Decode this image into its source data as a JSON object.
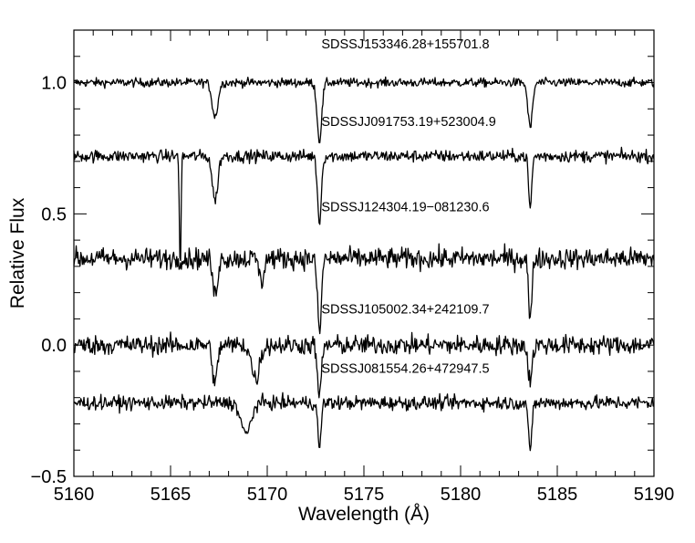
{
  "chart_data": {
    "type": "line",
    "title": "",
    "xlabel": "Wavelength (Å)",
    "ylabel": "Relative Flux",
    "xlim": [
      5160,
      5190
    ],
    "ylim": [
      -0.5,
      1.2
    ],
    "xticks": [
      5160,
      5165,
      5170,
      5175,
      5180,
      5185,
      5190
    ],
    "xtick_labels": [
      "5160",
      "5165",
      "5170",
      "5175",
      "5180",
      "5185",
      "5190"
    ],
    "yticks": [
      -0.5,
      0.0,
      0.5,
      1.0
    ],
    "ytick_labels": [
      "−0.5",
      "0.0",
      "0.5",
      "1.0"
    ],
    "grid": false,
    "line_color": "#000000",
    "series": [
      {
        "name": "SDSSJ153346.28+155701.8",
        "offset": 1.0,
        "noise": 0.016,
        "label_at": [
          5172.8,
          1.13
        ],
        "features": [
          {
            "center": 5167.3,
            "depth": 0.13,
            "width": 0.15
          },
          {
            "center": 5172.7,
            "depth": 0.22,
            "width": 0.12
          },
          {
            "center": 5183.6,
            "depth": 0.17,
            "width": 0.12
          }
        ]
      },
      {
        "name": "SDSSJJ091753.19+523004.9",
        "offset": 0.72,
        "noise": 0.022,
        "label_at": [
          5172.8,
          0.835
        ],
        "features": [
          {
            "center": 5165.5,
            "depth": 0.45,
            "width": 0.04
          },
          {
            "center": 5167.3,
            "depth": 0.17,
            "width": 0.14
          },
          {
            "center": 5172.7,
            "depth": 0.25,
            "width": 0.1
          },
          {
            "center": 5183.6,
            "depth": 0.2,
            "width": 0.08
          }
        ]
      },
      {
        "name": "SDSSJ124304.19−081230.6",
        "offset": 0.33,
        "noise": 0.038,
        "label_at": [
          5172.8,
          0.51
        ],
        "features": [
          {
            "center": 5167.3,
            "depth": 0.14,
            "width": 0.12
          },
          {
            "center": 5169.7,
            "depth": 0.1,
            "width": 0.1
          },
          {
            "center": 5172.7,
            "depth": 0.28,
            "width": 0.1
          },
          {
            "center": 5183.6,
            "depth": 0.25,
            "width": 0.08
          }
        ]
      },
      {
        "name": "SDSSJ105002.34+242109.7",
        "offset": 0.0,
        "noise": 0.035,
        "label_at": [
          5172.8,
          0.12
        ],
        "features": [
          {
            "center": 5167.3,
            "depth": 0.15,
            "width": 0.12
          },
          {
            "center": 5169.4,
            "depth": 0.13,
            "width": 0.2
          },
          {
            "center": 5172.7,
            "depth": 0.2,
            "width": 0.1
          },
          {
            "center": 5183.6,
            "depth": 0.14,
            "width": 0.1
          }
        ]
      },
      {
        "name": "SDSSJ081554.26+472947.5",
        "offset": -0.22,
        "noise": 0.025,
        "label_at": [
          5172.8,
          -0.105
        ],
        "features": [
          {
            "center": 5168.9,
            "depth": 0.12,
            "width": 0.25
          },
          {
            "center": 5172.7,
            "depth": 0.18,
            "width": 0.08
          },
          {
            "center": 5183.6,
            "depth": 0.2,
            "width": 0.08
          }
        ]
      }
    ]
  }
}
